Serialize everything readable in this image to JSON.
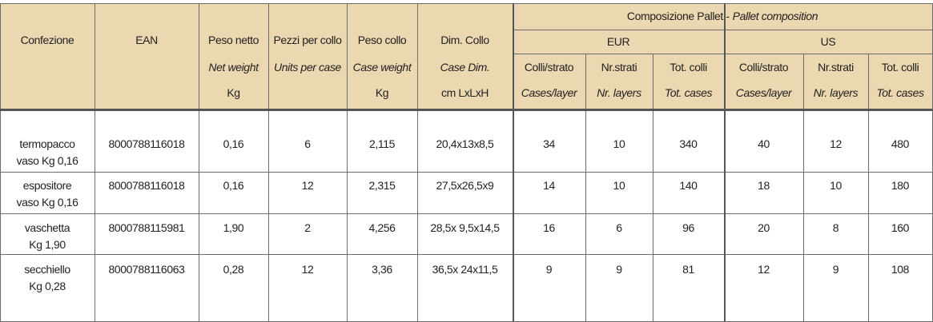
{
  "header": {
    "columns": [
      {
        "label": "Confezione"
      },
      {
        "label": "EAN"
      },
      {
        "label": "Peso netto",
        "translation": "Net weight",
        "unit": "Kg"
      },
      {
        "label": "Pezzi per collo",
        "translation": "Units per case"
      },
      {
        "label": "Peso collo",
        "translation": "Case weight",
        "unit": "Kg"
      },
      {
        "label": "Dim. Collo",
        "translation": "Case Dim.",
        "unit": "cm LxLxH"
      }
    ],
    "pallet": {
      "title": "Composizione Pallet -",
      "translation": "Pallet composition",
      "groups": [
        {
          "label": "EUR",
          "columns": [
            {
              "label": "Colli/strato",
              "translation": "Cases/layer"
            },
            {
              "label": "Nr.strati",
              "translation": "Nr. layers"
            },
            {
              "label": "Tot. colli",
              "translation": "Tot. cases"
            }
          ]
        },
        {
          "label": "US",
          "columns": [
            {
              "label": "Colli/strato",
              "translation": "Cases/layer"
            },
            {
              "label": "Nr.strati",
              "translation": "Nr. layers"
            },
            {
              "label": "Tot. colli",
              "translation": "Tot. cases"
            }
          ]
        }
      ]
    }
  },
  "rows": [
    [
      [
        "termopacco",
        "vaso Kg 0,16"
      ],
      "8000788116018",
      "0,16",
      "6",
      "2,115",
      "20,4x13x8,5",
      "34",
      "10",
      "340",
      "40",
      "12",
      "480"
    ],
    [
      [
        "espositore",
        "vaso Kg 0,16"
      ],
      "8000788116018",
      "0,16",
      "12",
      "2,315",
      "27,5x26,5x9",
      "14",
      "10",
      "140",
      "18",
      "10",
      "180"
    ],
    [
      [
        "vaschetta",
        "Kg 1,90"
      ],
      "8000788115981",
      "1,90",
      "2",
      "4,256",
      "28,5x 9,5x14,5",
      "16",
      "6",
      "96",
      "20",
      "8",
      "160"
    ],
    [
      [
        "secchiello",
        "Kg 0,28"
      ],
      "8000788116063",
      "0,28",
      "12",
      "3,36",
      "36,5x 24x11,5",
      "9",
      "9",
      "81",
      "12",
      "9",
      "108"
    ]
  ]
}
